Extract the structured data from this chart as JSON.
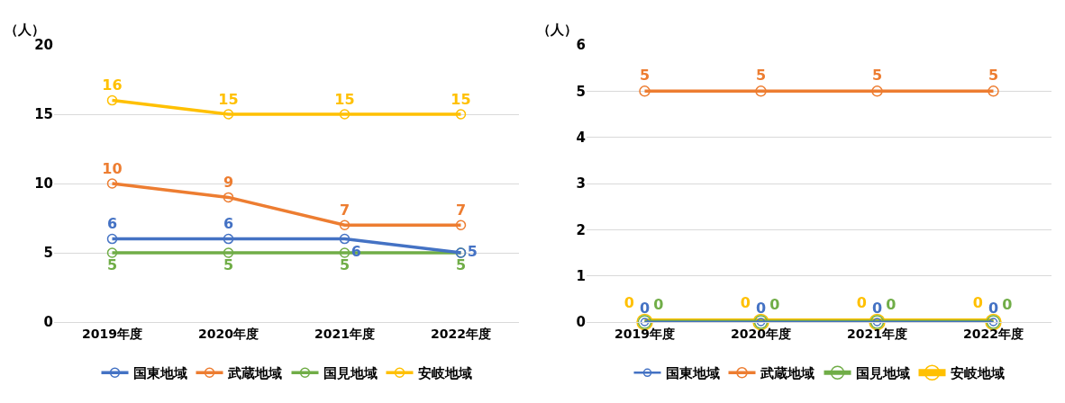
{
  "chart_data": [
    {
      "type": "line",
      "ylabel": "（人）",
      "categories": [
        "2019年度",
        "2020年度",
        "2021年度",
        "2022年度"
      ],
      "series": [
        {
          "name": "国東地域",
          "color": "#4472c4",
          "values": [
            6,
            6,
            6,
            5
          ]
        },
        {
          "name": "武蔵地域",
          "color": "#ed7d31",
          "values": [
            10,
            9,
            7,
            7
          ]
        },
        {
          "name": "国見地域",
          "color": "#70ad47",
          "values": [
            5,
            5,
            5,
            5
          ]
        },
        {
          "name": "安岐地域",
          "color": "#ffc000",
          "values": [
            16,
            15,
            15,
            15
          ]
        }
      ],
      "ylim": [
        0,
        20
      ],
      "yticks": [
        0,
        5,
        10,
        15,
        20
      ],
      "grid": "y",
      "legend": "bottom",
      "marker": "circle",
      "line_style": "solid",
      "data_labels": true
    },
    {
      "type": "line",
      "ylabel": "（人）",
      "categories": [
        "2019年度",
        "2020年度",
        "2021年度",
        "2022年度"
      ],
      "series": [
        {
          "name": "国東地域",
          "color": "#4472c4",
          "values": [
            0,
            0,
            0,
            0
          ]
        },
        {
          "name": "武蔵地域",
          "color": "#ed7d31",
          "values": [
            5,
            5,
            5,
            5
          ]
        },
        {
          "name": "国見地域",
          "color": "#70ad47",
          "values": [
            0,
            0,
            0,
            0
          ]
        },
        {
          "name": "安岐地域",
          "color": "#ffc000",
          "values": [
            0,
            0,
            0,
            0
          ]
        }
      ],
      "ylim": [
        0,
        6
      ],
      "yticks": [
        0,
        1,
        2,
        3,
        4,
        5,
        6
      ],
      "grid": "y",
      "legend": "bottom",
      "marker": "circle",
      "line_style": "solid",
      "data_labels": true
    }
  ]
}
